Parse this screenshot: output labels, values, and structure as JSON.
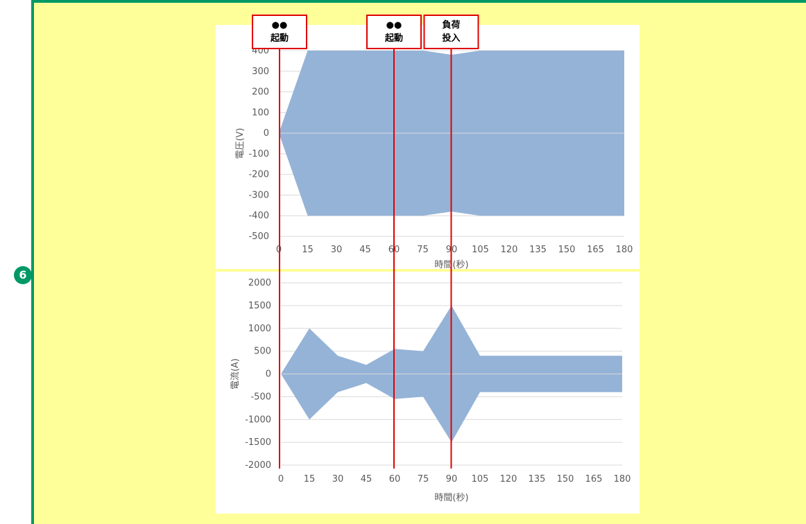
{
  "badge": "6",
  "colors": {
    "panel_bg": "#ffff99",
    "panel_border": "#009966",
    "series_fill": "#95b3d7",
    "marker": "#e00000"
  },
  "annotations": [
    {
      "x": 0,
      "line1": "●●",
      "line2": "起動"
    },
    {
      "x": 60,
      "line1": "●●",
      "line2": "起動"
    },
    {
      "x": 90,
      "line1": "負荷",
      "line2": "投入"
    }
  ],
  "chart_data": [
    {
      "type": "area",
      "ylabel": "電圧(V)",
      "xlabel": "時間(秒)",
      "x": [
        0,
        15,
        30,
        45,
        60,
        75,
        90,
        105,
        120,
        135,
        150,
        165,
        180
      ],
      "xlim": [
        0,
        180
      ],
      "ylim": [
        -500,
        400
      ],
      "yticks": [
        400,
        300,
        200,
        100,
        0,
        -100,
        -200,
        -300,
        -400,
        -500
      ],
      "series": [
        {
          "values_upper": [
            0,
            400,
            400,
            400,
            400,
            400,
            380,
            400,
            400,
            400,
            400,
            400,
            400
          ],
          "values_lower": [
            0,
            -400,
            -400,
            -400,
            -400,
            -400,
            -380,
            -400,
            -400,
            -400,
            -400,
            -400,
            -400
          ]
        }
      ],
      "grid": "horizontal"
    },
    {
      "type": "area",
      "ylabel": "電流(A)",
      "xlabel": "時間(秒)",
      "x": [
        0,
        15,
        30,
        45,
        60,
        75,
        90,
        105,
        120,
        135,
        150,
        165,
        180
      ],
      "xlim": [
        0,
        180
      ],
      "ylim": [
        -2000,
        2000
      ],
      "yticks": [
        2000,
        1500,
        1000,
        500,
        0,
        -500,
        -1000,
        -1500,
        -2000
      ],
      "series": [
        {
          "values_upper": [
            0,
            1000,
            400,
            200,
            550,
            500,
            1500,
            400,
            400,
            400,
            400,
            400,
            400
          ],
          "values_lower": [
            0,
            -1000,
            -400,
            -200,
            -550,
            -500,
            -1500,
            -400,
            -400,
            -400,
            -400,
            -400,
            -400
          ]
        }
      ],
      "grid": "horizontal"
    }
  ]
}
